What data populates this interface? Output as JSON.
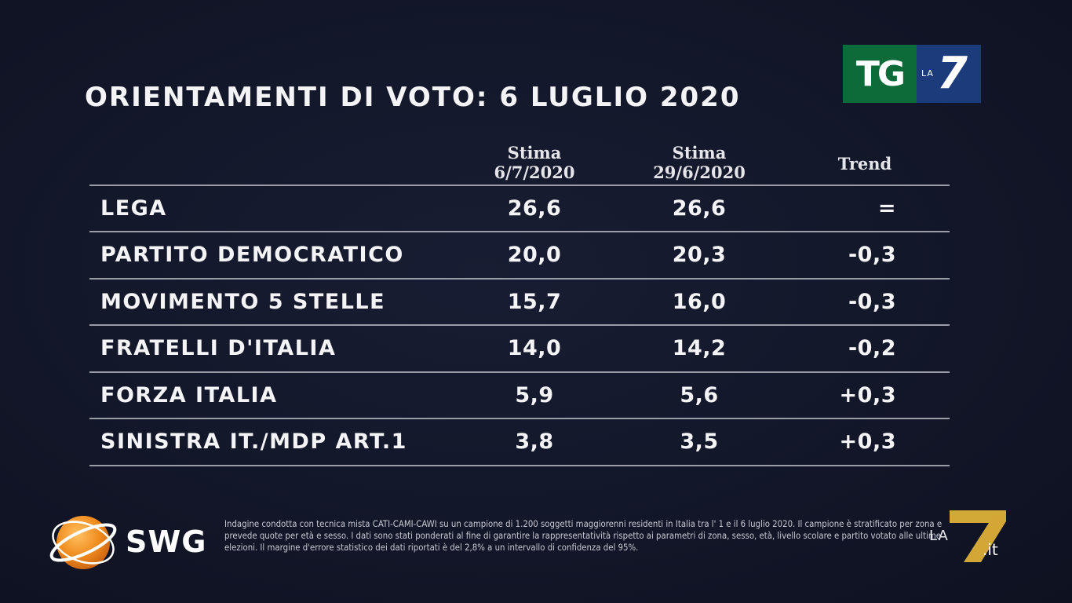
{
  "title": "ORIENTAMENTI DI VOTO: 6 LUGLIO 2020",
  "logos": {
    "broadcaster": {
      "tg": "TG",
      "la": "LA",
      "seven": "7"
    },
    "pollster": "SWG",
    "watermark": {
      "la": "LA",
      "seven": "7",
      "it": ".it"
    }
  },
  "chart_data": {
    "type": "table",
    "columns": [
      {
        "line1": "Stima",
        "line2": "6/7/2020"
      },
      {
        "line1": "Stima",
        "line2": "29/6/2020"
      },
      {
        "line1": "Trend",
        "line2": ""
      }
    ],
    "rows": [
      {
        "party": "LEGA",
        "stima_6_7": "26,6",
        "stima_29_6": "26,6",
        "trend": "="
      },
      {
        "party": "PARTITO  DEMOCRATICO",
        "stima_6_7": "20,0",
        "stima_29_6": "20,3",
        "trend": "-0,3"
      },
      {
        "party": "MOVIMENTO 5 STELLE",
        "stima_6_7": "15,7",
        "stima_29_6": "16,0",
        "trend": "-0,3"
      },
      {
        "party": "FRATELLI D'ITALIA",
        "stima_6_7": "14,0",
        "stima_29_6": "14,2",
        "trend": "-0,2"
      },
      {
        "party": "FORZA ITALIA",
        "stima_6_7": "5,9",
        "stima_29_6": "5,6",
        "trend": "+0,3"
      },
      {
        "party": "SINISTRA IT./MDP ART.1",
        "stima_6_7": "3,8",
        "stima_29_6": "3,5",
        "trend": "+0,3"
      }
    ]
  },
  "footnote": "Indagine condotta con tecnica mista CATI-CAMI-CAWI su un campione di 1.200 soggetti maggiorenni residenti in Italia tra l' 1 e il 6 luglio 2020. Il campione è stratificato per zona e prevede quote per età e sesso. I dati sono stati ponderati al fine di garantire la rappresentatività rispetto ai parametri di zona, sesso, età, livello scolare e partito votato alle ultime elezioni. Il margine d'errore statistico dei dati riportati è del 2,8% a un intervallo di confidenza del 95%.",
  "colors": {
    "background": "#121628",
    "tg_green": "#0d6b3a",
    "la7_blue": "#1c3b7a",
    "swg_orange": "#f08a1c",
    "la7_gold": "#e8b838"
  }
}
